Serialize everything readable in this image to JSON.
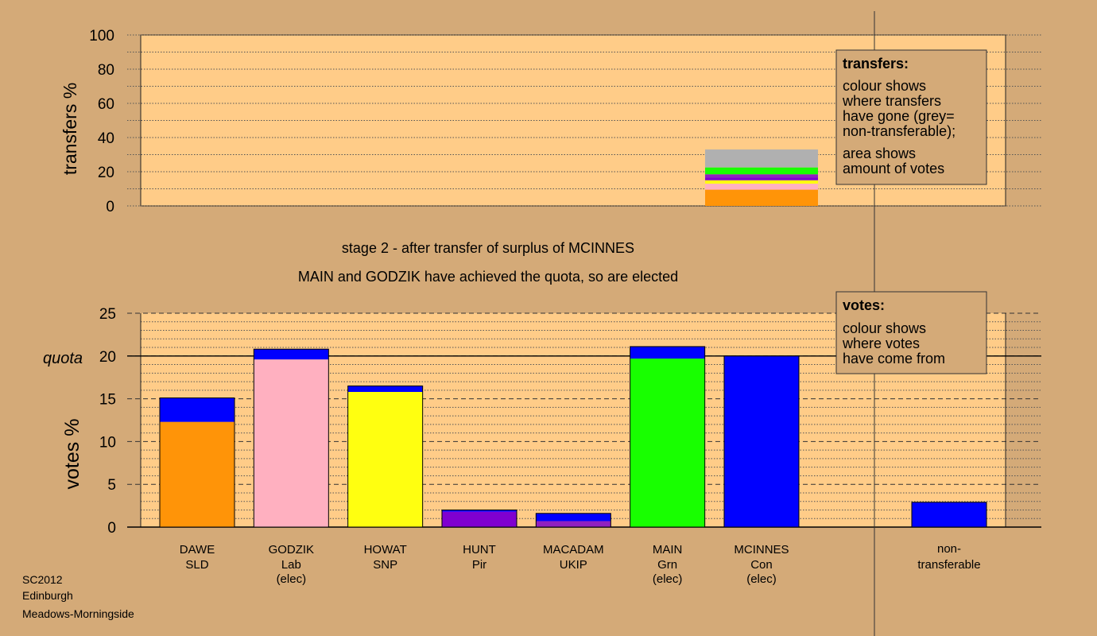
{
  "colors": {
    "background": "#d4aa78",
    "plot_bg": "#ffcc88",
    "dawe": "#ff9408",
    "godzik": "#ffb0c0",
    "howat": "#ffff10",
    "hunt": "#8000d0",
    "macadam": "#9020c0",
    "main": "#18ff00",
    "mcinnes": "#0000ff",
    "nontransferable": "#b0b0b0"
  },
  "header": {
    "stage_text": "stage 2 - after transfer of surplus of MCINNES",
    "elected_text": "MAIN and GODZIK have achieved the quota, so are elected"
  },
  "footer": {
    "line1": "SC2012",
    "line2": "Edinburgh",
    "line3": "Meadows-Morningside"
  },
  "transfers_legend": {
    "title": "transfers:",
    "lines1": [
      "colour shows",
      "where transfers",
      "have gone (grey=",
      "non-transferable);"
    ],
    "lines2": [
      "area shows",
      "amount of votes"
    ]
  },
  "votes_legend": {
    "title": "votes:",
    "lines": [
      "colour shows",
      "where votes",
      "have come from"
    ]
  },
  "chart_data": [
    {
      "type": "bar",
      "ylabel": "transfers %",
      "ylim": [
        0,
        100
      ],
      "yticks": [
        0,
        20,
        40,
        60,
        80,
        100
      ],
      "transfer_segments": [
        {
          "to": "DAWE",
          "color": "#ff9408",
          "value": 9.5
        },
        {
          "to": "GODZIK",
          "color": "#ffb0c0",
          "value": 3.5
        },
        {
          "to": "HOWAT",
          "color": "#ffff10",
          "value": 2.0
        },
        {
          "to": "HUNT",
          "color": "#8000d0",
          "value": 1.5
        },
        {
          "to": "MACADAM",
          "color": "#9020c0",
          "value": 2.0
        },
        {
          "to": "MAIN",
          "color": "#18ff00",
          "value": 4.0
        },
        {
          "to": "non-transferable",
          "color": "#b0b0b0",
          "value": 10.5
        }
      ]
    },
    {
      "type": "bar",
      "ylabel": "votes %",
      "ylim": [
        0,
        25
      ],
      "yticks": [
        0,
        5,
        10,
        15,
        20,
        25
      ],
      "quota": 20,
      "quota_label": "quota",
      "candidates": [
        {
          "name": "DAWE",
          "party": "SLD",
          "status": "",
          "segments": [
            {
              "value": 12.3,
              "color": "#ff9408"
            },
            {
              "value": 2.8,
              "color": "#0000ff"
            }
          ]
        },
        {
          "name": "GODZIK",
          "party": "Lab",
          "status": "(elec)",
          "segments": [
            {
              "value": 19.6,
              "color": "#ffb0c0"
            },
            {
              "value": 1.2,
              "color": "#0000ff"
            }
          ]
        },
        {
          "name": "HOWAT",
          "party": "SNP",
          "status": "",
          "segments": [
            {
              "value": 15.8,
              "color": "#ffff10"
            },
            {
              "value": 0.7,
              "color": "#0000ff"
            }
          ]
        },
        {
          "name": "HUNT",
          "party": "Pir",
          "status": "",
          "segments": [
            {
              "value": 1.8,
              "color": "#8000d0"
            },
            {
              "value": 0.2,
              "color": "#0000ff"
            }
          ]
        },
        {
          "name": "MACADAM",
          "party": "UKIP",
          "status": "",
          "segments": [
            {
              "value": 0.7,
              "color": "#9020c0"
            },
            {
              "value": 0.9,
              "color": "#0000ff"
            }
          ]
        },
        {
          "name": "MAIN",
          "party": "Grn",
          "status": "(elec)",
          "segments": [
            {
              "value": 19.7,
              "color": "#18ff00"
            },
            {
              "value": 1.4,
              "color": "#0000ff"
            }
          ]
        },
        {
          "name": "MCINNES",
          "party": "Con",
          "status": "(elec)",
          "segments": [
            {
              "value": 20.0,
              "color": "#0000ff"
            }
          ]
        }
      ],
      "nontransferable": {
        "line1": "non-",
        "line2": "transferable",
        "segments": [
          {
            "value": 2.9,
            "color": "#0000ff"
          }
        ]
      }
    }
  ]
}
